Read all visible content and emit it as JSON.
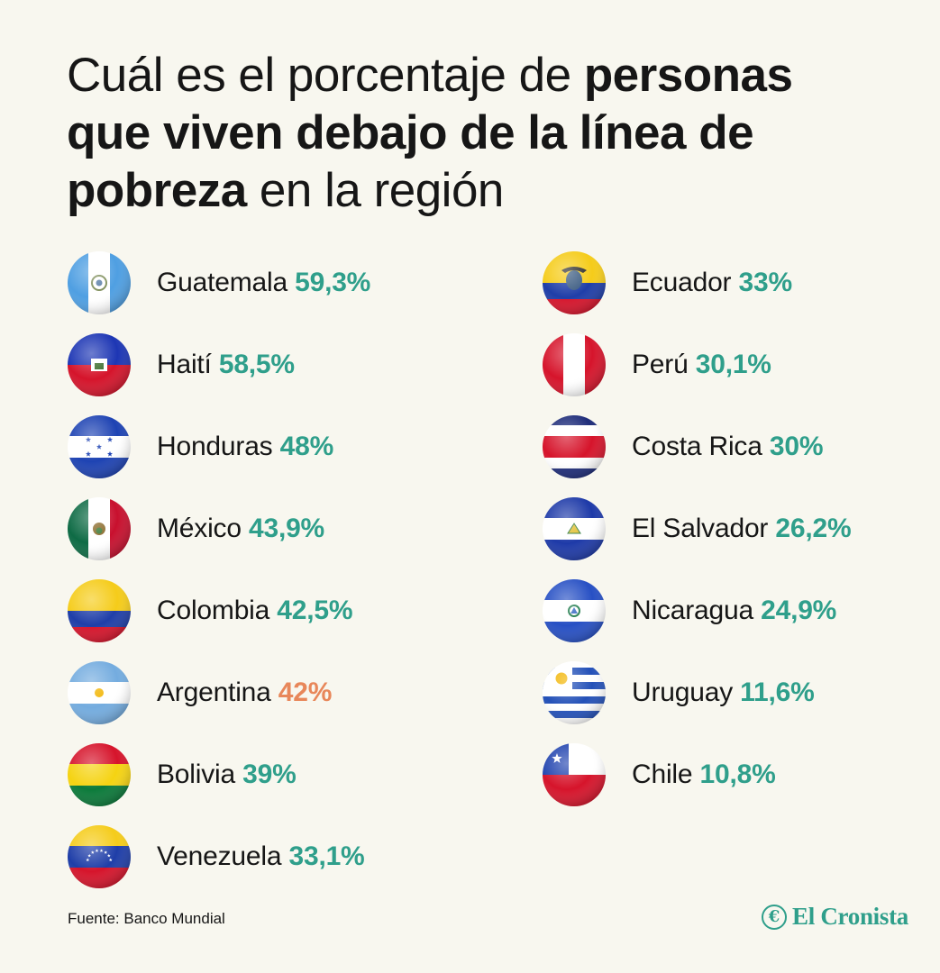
{
  "title": {
    "part1": "Cuál es el porcentaje de ",
    "part2": "personas que viven debajo de la línea de pobreza",
    "part3": " en la región"
  },
  "colors": {
    "accent": "#2f9f8b",
    "highlight": "#e8875a",
    "background": "#f8f7ef",
    "text": "#161616"
  },
  "chart_data": {
    "type": "table",
    "unit": "%",
    "entries": [
      {
        "country": "Guatemala",
        "value_text": "59,3%",
        "value": 59.3,
        "color": "#2f9f8b",
        "flag": [
          "#4f9fe2",
          "#ffffff",
          "#4f9fe2"
        ],
        "flag_dir": "v",
        "emblem": "guatemala-emblem"
      },
      {
        "country": "Haití",
        "value_text": "58,5%",
        "value": 58.5,
        "color": "#2f9f8b",
        "flag": [
          "#1d36b4",
          "#d5142b"
        ],
        "flag_dir": "h",
        "emblem": "haiti-coat-of-arms"
      },
      {
        "country": "Honduras",
        "value_text": "48%",
        "value": 48,
        "color": "#2f9f8b",
        "flag": [
          "#1e43b3",
          "#ffffff",
          "#1e43b3"
        ],
        "flag_dir": "h",
        "emblem": "five-stars"
      },
      {
        "country": "México",
        "value_text": "43,9%",
        "value": 43.9,
        "color": "#2f9f8b",
        "flag": [
          "#0e6b45",
          "#ffffff",
          "#c8102e"
        ],
        "flag_dir": "v",
        "emblem": "mexico-eagle"
      },
      {
        "country": "Colombia",
        "value_text": "42,5%",
        "value": 42.5,
        "color": "#2f9f8b",
        "flag": [
          "#f5cc1a",
          "#f5cc1a",
          "#1f3ea8",
          "#d6142b"
        ],
        "flag_dir": "h",
        "emblem": ""
      },
      {
        "country": "Argentina",
        "value_text": "42%",
        "value": 42,
        "color": "#e8875a",
        "flag": [
          "#74acdf",
          "#ffffff",
          "#74acdf"
        ],
        "flag_dir": "h",
        "emblem": "sun-of-may"
      },
      {
        "country": "Bolivia",
        "value_text": "39%",
        "value": 39,
        "color": "#2f9f8b",
        "flag": [
          "#d6142b",
          "#f5d312",
          "#0b7a3a"
        ],
        "flag_dir": "h",
        "emblem": ""
      },
      {
        "country": "Venezuela",
        "value_text": "33,1%",
        "value": 33.1,
        "color": "#2f9f8b",
        "flag": [
          "#f5cc1a",
          "#1f3ea8",
          "#d6142b"
        ],
        "flag_dir": "h",
        "emblem": "arc-of-stars"
      },
      {
        "country": "Ecuador",
        "value_text": "33%",
        "value": 33,
        "color": "#2f9f8b",
        "flag": [
          "#f5cc1a",
          "#f5cc1a",
          "#1f3ea8",
          "#d6142b"
        ],
        "flag_dir": "h",
        "emblem": "ecuador-coat-of-arms"
      },
      {
        "country": "Perú",
        "value_text": "30,1%",
        "value": 30.1,
        "color": "#2f9f8b",
        "flag": [
          "#d6142b",
          "#ffffff",
          "#d6142b"
        ],
        "flag_dir": "v",
        "emblem": ""
      },
      {
        "country": "Costa Rica",
        "value_text": "30%",
        "value": 30,
        "color": "#2f9f8b",
        "flag": [
          "#1f2d7a",
          "#ffffff",
          "#d6142b",
          "#d6142b",
          "#ffffff",
          "#1f2d7a"
        ],
        "flag_dir": "h",
        "emblem": ""
      },
      {
        "country": "El Salvador",
        "value_text": "26,2%",
        "value": 26.2,
        "color": "#2f9f8b",
        "flag": [
          "#1e3aa8",
          "#ffffff",
          "#1e3aa8"
        ],
        "flag_dir": "h",
        "emblem": "el-salvador-coat-of-arms"
      },
      {
        "country": "Nicaragua",
        "value_text": "24,9%",
        "value": 24.9,
        "color": "#2f9f8b",
        "flag": [
          "#2750c4",
          "#ffffff",
          "#2750c4"
        ],
        "flag_dir": "h",
        "emblem": "nicaragua-coat-of-arms"
      },
      {
        "country": "Uruguay",
        "value_text": "11,6%",
        "value": 11.6,
        "color": "#2f9f8b",
        "flag": [
          "#ffffff",
          "#2451b8",
          "#ffffff",
          "#2451b8",
          "#ffffff",
          "#2451b8",
          "#ffffff",
          "#2451b8",
          "#ffffff"
        ],
        "flag_dir": "h",
        "emblem": "sun-of-may-canton"
      },
      {
        "country": "Chile",
        "value_text": "10,8%",
        "value": 10.8,
        "color": "#2f9f8b",
        "flag": [
          "#ffffff",
          "#d6142b"
        ],
        "flag_dir": "h",
        "emblem": "chile-canton-star"
      }
    ]
  },
  "footer": {
    "source": "Fuente: Banco Mundial",
    "brand_mark": "€",
    "brand_name": "El Cronista"
  }
}
